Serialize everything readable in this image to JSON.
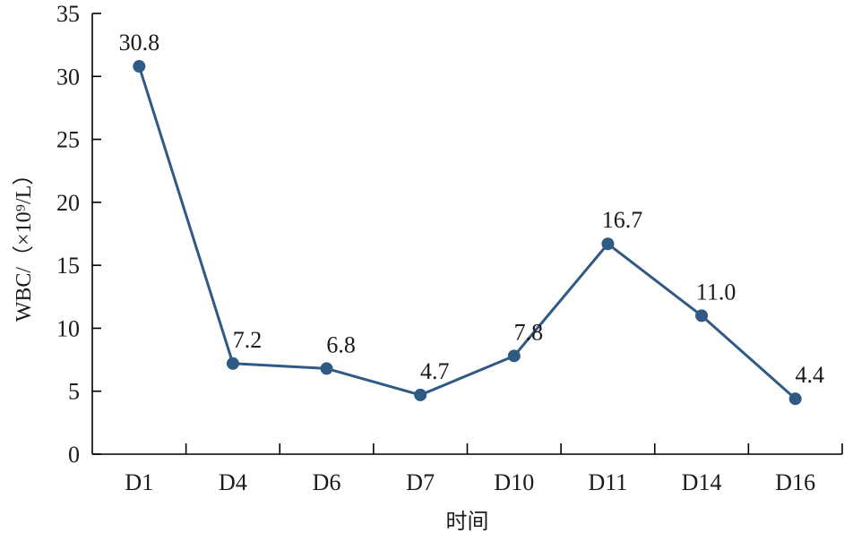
{
  "chart_data": {
    "type": "line",
    "categories": [
      "D1",
      "D4",
      "D6",
      "D7",
      "D10",
      "D11",
      "D14",
      "D16"
    ],
    "series": [
      {
        "values": [
          30.8,
          7.2,
          6.8,
          4.7,
          7.8,
          16.7,
          11.0,
          4.4
        ]
      }
    ],
    "data_labels": [
      "30.8",
      "7.2",
      "6.8",
      "4.7",
      "7.8",
      "16.7",
      "11.0",
      "4.4"
    ],
    "yticks": [
      0,
      5,
      10,
      15,
      20,
      25,
      30,
      35
    ],
    "ylim": [
      0,
      35
    ],
    "xlabel": "时间",
    "ylabel": "WBC/（×10⁹/L）",
    "grid": false,
    "legend": "none",
    "color": "#2f5a84"
  }
}
